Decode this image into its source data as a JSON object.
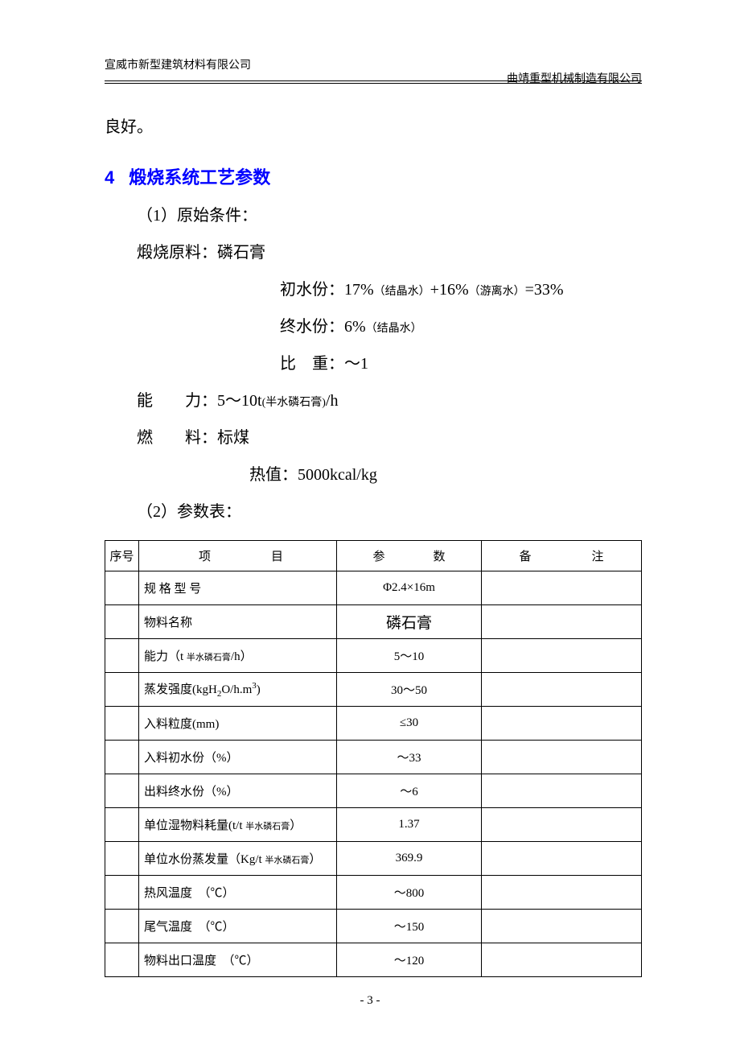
{
  "header": {
    "left": "宣威市新型建筑材料有限公司",
    "right": "曲靖重型机械制造有限公司"
  },
  "trailing_text": "良好。",
  "section": {
    "number": "4",
    "title": "煅烧系统工艺参数"
  },
  "conditions": {
    "sub1_label": "（1）原始条件：",
    "raw_material_line": "煅烧原料：磷石膏",
    "initial_moisture_label": "初水份：",
    "initial_moisture_value": "17%",
    "initial_moisture_note1": "（结晶水）",
    "initial_moisture_plus": "+16%",
    "initial_moisture_note2": "（游离水）",
    "initial_moisture_eq": "=33%",
    "final_moisture_label": "终水份：",
    "final_moisture_value": "6%",
    "final_moisture_note": "（结晶水）",
    "specific_gravity_label": "比　重：",
    "specific_gravity_value": "～1",
    "capacity_label_a": "能",
    "capacity_label_b": "力：",
    "capacity_value": "5～10t",
    "capacity_sub": "(半水磷石膏)",
    "capacity_unit": "/h",
    "fuel_label_a": "燃",
    "fuel_label_b": "料：",
    "fuel_value": "标煤",
    "heat_label": "热值：",
    "heat_value": "5000kcal/kg",
    "sub2_label": "（2）参数表："
  },
  "table": {
    "headers": {
      "seq": "序号",
      "item": "项目",
      "param": "参数",
      "note": "备注"
    },
    "header_display": {
      "item_a": "项",
      "item_b": "目",
      "param_a": "参",
      "param_b": "数",
      "note_a": "备",
      "note_b": "注"
    },
    "rows": [
      {
        "item_main": "规 格 型 号",
        "param": "Φ2.4×16m",
        "note": ""
      },
      {
        "item_main": "物料名称",
        "param": "磷石膏",
        "note": "",
        "param_large": true
      },
      {
        "item_main": "能力（t ",
        "item_sub": "半水磷石膏",
        "item_tail": "/h）",
        "param": "5～10",
        "note": ""
      },
      {
        "item_main": "蒸发强度(kgH",
        "item_sub_formula": true,
        "param": "30～50",
        "note": ""
      },
      {
        "item_main": "入料粒度(mm)",
        "param": "≤30",
        "note": ""
      },
      {
        "item_main": "入料初水份（%）",
        "param": "～33",
        "note": ""
      },
      {
        "item_main": "出料终水份（%）",
        "param": "～6",
        "note": ""
      },
      {
        "item_main": "单位湿物料耗量(t/t ",
        "item_sub": "半水磷石膏",
        "item_tail": "）",
        "param": "1.37",
        "note": ""
      },
      {
        "item_main": "单位水份蒸发量（Kg/t ",
        "item_sub": "半水磷石膏",
        "item_tail": "）",
        "param": "369.9",
        "note": ""
      },
      {
        "item_main": "热风温度　（℃）",
        "param": "～800",
        "note": ""
      },
      {
        "item_main": "尾气温度　（℃）",
        "param": "～150",
        "note": ""
      },
      {
        "item_main": "物料出口温度　（℃）",
        "param": "～120",
        "note": ""
      }
    ]
  },
  "footer": "- 3 -",
  "colors": {
    "heading": "#0000ff",
    "text": "#000000",
    "background": "#ffffff",
    "border": "#000000"
  }
}
